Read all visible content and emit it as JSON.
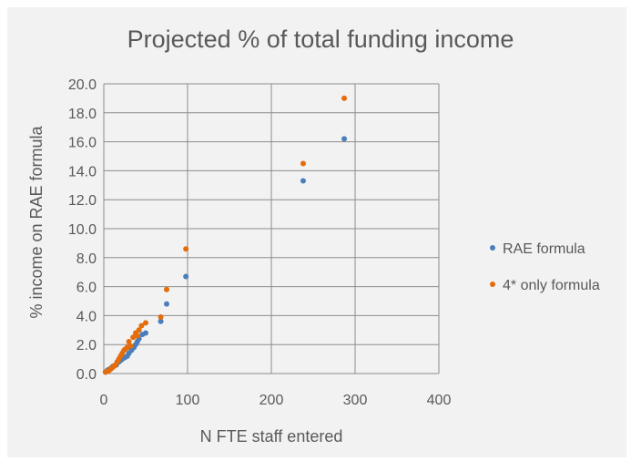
{
  "chart_data": {
    "type": "scatter",
    "title": "Projected % of total funding income",
    "xlabel": "N FTE staff entered",
    "ylabel": "% income on RAE formula",
    "xlim": [
      0,
      400
    ],
    "ylim": [
      0,
      20
    ],
    "x_ticks": [
      "0",
      "100",
      "200",
      "300",
      "400"
    ],
    "y_ticks": [
      "0.0",
      "2.0",
      "4.0",
      "6.0",
      "8.0",
      "10.0",
      "12.0",
      "14.0",
      "16.0",
      "18.0",
      "20.0"
    ],
    "grid": true,
    "legend_position": "right",
    "series": [
      {
        "name": "RAE formula",
        "color": "#4a7ebb",
        "x": [
          2,
          4,
          5,
          7,
          9,
          11,
          13,
          15,
          18,
          20,
          22,
          25,
          28,
          30,
          33,
          36,
          38,
          40,
          42,
          46,
          50,
          68,
          75,
          98,
          238,
          287
        ],
        "y": [
          0.1,
          0.2,
          0.25,
          0.3,
          0.4,
          0.5,
          0.55,
          0.6,
          0.8,
          0.9,
          1.0,
          1.1,
          1.2,
          1.4,
          1.6,
          1.8,
          2.0,
          2.2,
          2.4,
          2.7,
          2.8,
          3.6,
          4.8,
          6.7,
          13.3,
          16.2
        ]
      },
      {
        "name": "4* only formula",
        "color": "#e46c0a",
        "x": [
          2,
          4,
          6,
          8,
          10,
          12,
          14,
          16,
          18,
          20,
          22,
          24,
          26,
          28,
          30,
          32,
          35,
          38,
          40,
          42,
          45,
          50,
          68,
          75,
          98,
          238,
          287
        ],
        "y": [
          0.1,
          0.15,
          0.2,
          0.3,
          0.4,
          0.5,
          0.6,
          0.8,
          1.0,
          1.2,
          1.4,
          1.6,
          1.7,
          1.8,
          2.2,
          1.9,
          2.5,
          2.8,
          2.6,
          3.0,
          3.3,
          3.5,
          3.9,
          5.8,
          8.6,
          14.5,
          19.0
        ]
      }
    ]
  }
}
